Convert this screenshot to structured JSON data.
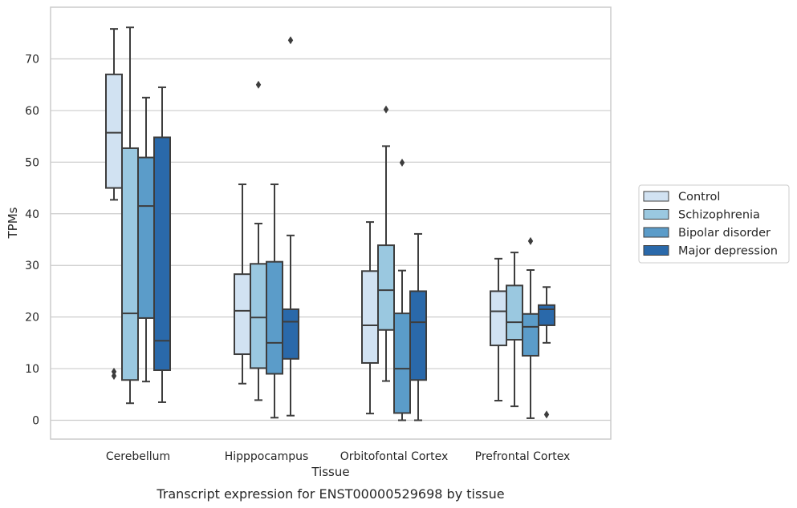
{
  "chart_data": {
    "type": "box",
    "title": "Transcript expression for ENST00000529698 by tissue",
    "xlabel": "Tissue",
    "ylabel": "TPMs",
    "ylim": [
      -3.5,
      80
    ],
    "yticks": [
      0,
      10,
      20,
      30,
      40,
      50,
      60,
      70
    ],
    "grid": true,
    "legend_position": "right",
    "categories": [
      "Cerebellum",
      "Hipppocampus",
      "Orbitofontal Cortex",
      "Prefrontal Cortex"
    ],
    "series": [
      {
        "name": "Control",
        "color": "#d1e2f2",
        "boxes": [
          {
            "whisker_low": 42.7,
            "q1": 45.0,
            "median": 55.7,
            "q3": 67.0,
            "whisker_high": 75.8,
            "outliers": [
              8.6,
              9.4
            ]
          },
          {
            "whisker_low": 7.1,
            "q1": 12.8,
            "median": 21.2,
            "q3": 28.3,
            "whisker_high": 45.7,
            "outliers": []
          },
          {
            "whisker_low": 1.3,
            "q1": 11.1,
            "median": 18.4,
            "q3": 28.9,
            "whisker_high": 38.4,
            "outliers": []
          },
          {
            "whisker_low": 3.8,
            "q1": 14.5,
            "median": 21.1,
            "q3": 25.0,
            "whisker_high": 31.3,
            "outliers": []
          }
        ]
      },
      {
        "name": "Schizophrenia",
        "color": "#9ac8e0",
        "boxes": [
          {
            "whisker_low": 3.3,
            "q1": 7.8,
            "median": 20.7,
            "q3": 52.7,
            "whisker_high": 76.1,
            "outliers": []
          },
          {
            "whisker_low": 3.9,
            "q1": 10.1,
            "median": 19.9,
            "q3": 30.3,
            "whisker_high": 38.1,
            "outliers": [
              65.0
            ]
          },
          {
            "whisker_low": 7.6,
            "q1": 17.5,
            "median": 25.2,
            "q3": 33.9,
            "whisker_high": 53.1,
            "outliers": [
              60.2
            ]
          },
          {
            "whisker_low": 2.7,
            "q1": 15.6,
            "median": 19.0,
            "q3": 26.1,
            "whisker_high": 32.5,
            "outliers": []
          }
        ]
      },
      {
        "name": "Bipolar disorder",
        "color": "#5b9cc9",
        "boxes": [
          {
            "whisker_low": 7.5,
            "q1": 19.8,
            "median": 41.5,
            "q3": 50.9,
            "whisker_high": 62.5,
            "outliers": []
          },
          {
            "whisker_low": 0.5,
            "q1": 9.0,
            "median": 15.0,
            "q3": 30.7,
            "whisker_high": 45.7,
            "outliers": []
          },
          {
            "whisker_low": 0.0,
            "q1": 1.4,
            "median": 10.0,
            "q3": 20.7,
            "whisker_high": 29.0,
            "outliers": [
              49.9
            ]
          },
          {
            "whisker_low": 0.4,
            "q1": 12.5,
            "median": 18.1,
            "q3": 20.6,
            "whisker_high": 29.1,
            "outliers": [
              34.7
            ]
          }
        ]
      },
      {
        "name": "Major depression",
        "color": "#2a69aa",
        "boxes": [
          {
            "whisker_low": 3.5,
            "q1": 9.7,
            "median": 15.4,
            "q3": 54.8,
            "whisker_high": 64.5,
            "outliers": []
          },
          {
            "whisker_low": 0.9,
            "q1": 11.9,
            "median": 19.1,
            "q3": 21.5,
            "whisker_high": 35.8,
            "outliers": [
              73.6
            ]
          },
          {
            "whisker_low": 0.0,
            "q1": 7.8,
            "median": 19.0,
            "q3": 25.0,
            "whisker_high": 36.1,
            "outliers": []
          },
          {
            "whisker_low": 15.0,
            "q1": 18.4,
            "median": 21.5,
            "q3": 22.3,
            "whisker_high": 25.8,
            "outliers": [
              1.1
            ]
          }
        ]
      }
    ]
  }
}
